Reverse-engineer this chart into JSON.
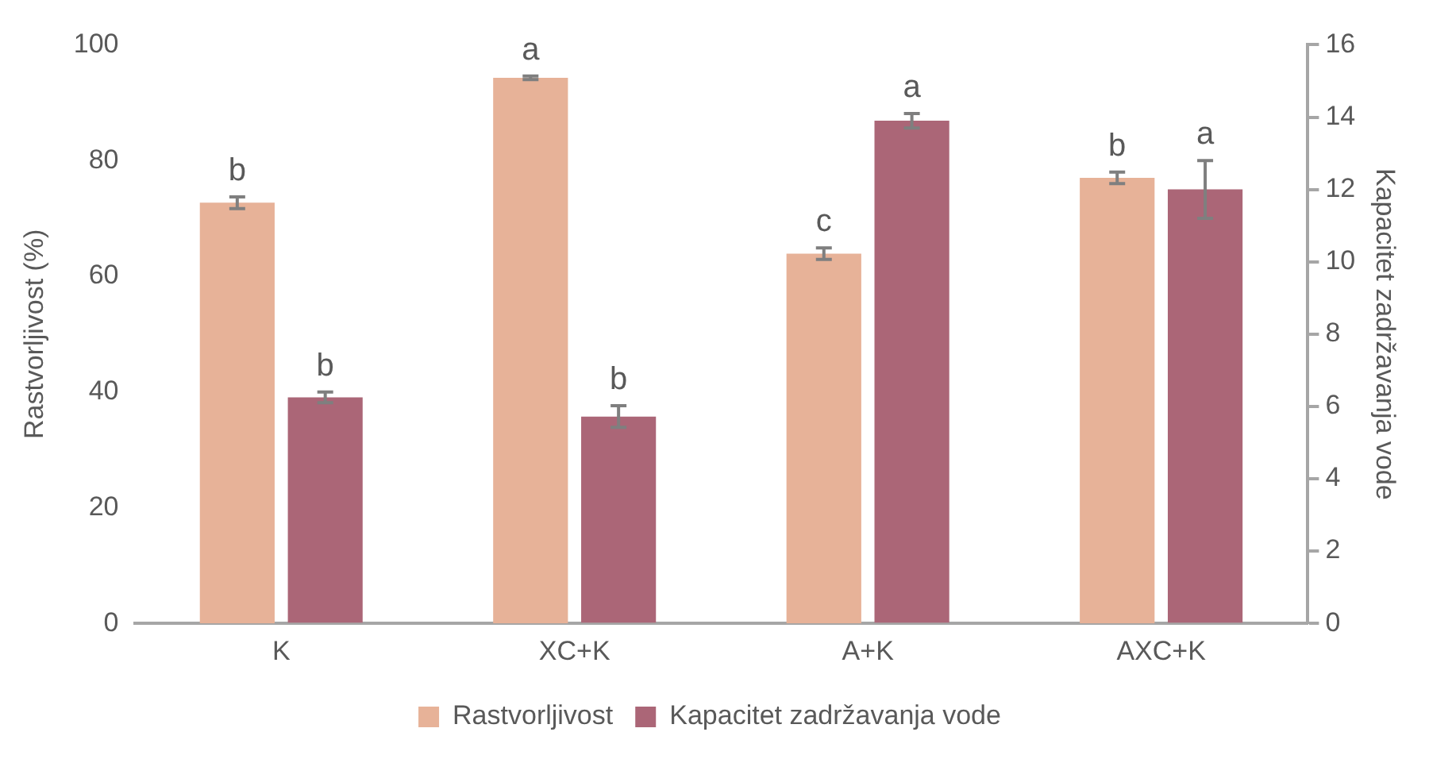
{
  "chart_data": {
    "type": "bar",
    "ylabel": "Rastvorljivost (%)",
    "y2label": "Kapacitet zadržavanja vode",
    "categories": [
      "K",
      "XC+K",
      "A+K",
      "AXC+K"
    ],
    "series": [
      {
        "name": "Rastvorljivost",
        "color": "#e7b298",
        "values": [
          72.7,
          94.3,
          63.9,
          77.0
        ],
        "errors": [
          1.0,
          0.3,
          1.0,
          1.0
        ],
        "value_labels": [
          "b",
          "a",
          "c",
          "b"
        ]
      },
      {
        "name": "Kapacitet zadržavanja vode",
        "color": "#ab6677",
        "axis": "y2",
        "values": [
          6.25,
          5.72,
          13.9,
          12.0
        ],
        "errors": [
          0.15,
          0.3,
          0.2,
          0.8
        ],
        "value_labels": [
          "b",
          "b",
          "a",
          "a"
        ]
      }
    ],
    "ylim": [
      0,
      100
    ],
    "yticks": [
      0,
      20,
      40,
      60,
      80,
      100
    ],
    "y2lim": [
      0,
      16
    ],
    "y2ticks": [
      0,
      2,
      4,
      6,
      8,
      10,
      12,
      14,
      16
    ],
    "grid": false,
    "legend": "bottom"
  }
}
